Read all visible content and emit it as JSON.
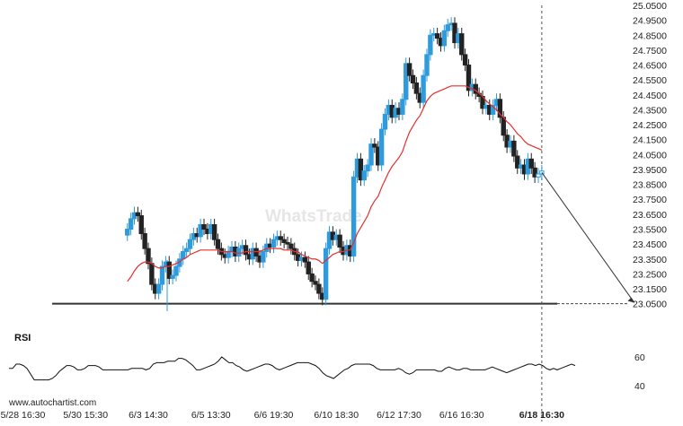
{
  "chart_data": {
    "type": "candlestick",
    "watermark": "WhatsTrade",
    "source": "www.autochartist.com",
    "ylim": [
      23.0,
      25.05
    ],
    "y_ticks": [
      "25.0500",
      "24.9500",
      "24.8500",
      "24.7500",
      "24.6500",
      "24.5500",
      "24.4500",
      "24.3500",
      "24.2500",
      "24.1500",
      "24.0500",
      "23.9500",
      "23.8500",
      "23.7500",
      "23.6500",
      "23.5500",
      "23.4500",
      "23.3500",
      "23.2500",
      "23.1500",
      "23.0500"
    ],
    "x_ticks": [
      {
        "label": "5/28 16:30",
        "bar": 4
      },
      {
        "label": "5/30 15:30",
        "bar": 22
      },
      {
        "label": "6/3 14:30",
        "bar": 40
      },
      {
        "label": "6/5 13:30",
        "bar": 58
      },
      {
        "label": "6/6 19:30",
        "bar": 76
      },
      {
        "label": "6/10 18:30",
        "bar": 94
      },
      {
        "label": "6/12 17:30",
        "bar": 112
      },
      {
        "label": "6/16 16:30",
        "bar": 130
      },
      {
        "label": "6/18 16:30",
        "bar": 153,
        "bold": true
      }
    ],
    "support_level": 23.05,
    "forecast": {
      "from_bar": 153,
      "from_price": 23.93,
      "to_bar": 180,
      "to_price": 23.05
    },
    "closes": [
      23.55,
      23.62,
      23.66,
      23.64,
      23.52,
      23.42,
      23.32,
      23.18,
      23.12,
      23.18,
      23.3,
      23.33,
      23.22,
      23.24,
      23.3,
      23.35,
      23.4,
      23.42,
      23.48,
      23.52,
      23.5,
      23.58,
      23.55,
      23.52,
      23.58,
      23.48,
      23.42,
      23.38,
      23.36,
      23.4,
      23.43,
      23.37,
      23.42,
      23.44,
      23.38,
      23.35,
      23.42,
      23.37,
      23.33,
      23.4,
      23.45,
      23.43,
      23.48,
      23.5,
      23.48,
      23.46,
      23.45,
      23.42,
      23.38,
      23.34,
      23.36,
      23.33,
      23.25,
      23.2,
      23.18,
      23.12,
      23.08,
      23.42,
      23.53,
      23.48,
      23.51,
      23.43,
      23.38,
      23.44,
      23.37,
      23.9,
      24.02,
      23.88,
      23.94,
      23.98,
      24.12,
      24.1,
      23.98,
      24.22,
      24.32,
      24.38,
      24.3,
      24.36,
      24.32,
      24.42,
      24.66,
      24.58,
      24.53,
      24.46,
      24.4,
      24.58,
      24.72,
      24.85,
      24.86,
      24.83,
      24.78,
      24.88,
      24.92,
      24.93,
      24.8,
      24.86,
      24.72,
      24.65,
      24.48,
      24.52,
      24.46,
      24.44,
      24.36,
      24.38,
      24.32,
      24.38,
      24.42,
      24.3,
      24.18,
      24.1,
      24.14,
      24.04,
      23.96,
      23.98,
      23.92,
      24.02,
      23.96,
      23.9,
      23.92,
      23.94
    ],
    "rsi": {
      "label": "RSI",
      "ticks": [
        "60",
        "40"
      ],
      "ylim": [
        30,
        70
      ],
      "values": [
        52,
        52,
        55,
        55,
        54,
        52,
        48,
        44,
        44,
        44,
        44,
        44,
        45,
        47,
        50,
        52,
        54,
        54,
        53,
        51,
        51,
        52,
        54,
        54,
        54,
        53,
        51,
        51,
        51,
        51,
        51,
        51,
        51,
        51,
        52,
        52,
        52,
        52,
        51,
        52,
        55,
        56,
        56,
        56,
        57,
        57,
        57,
        59,
        59,
        58,
        56,
        54,
        51,
        51,
        52,
        53,
        54,
        55,
        57,
        60,
        58,
        56,
        56,
        54,
        53,
        51,
        50,
        51,
        52,
        53,
        54,
        55,
        55,
        54,
        52,
        51,
        52,
        53,
        54,
        55,
        56,
        56,
        56,
        56,
        55,
        54,
        52,
        49,
        47,
        46,
        45,
        47,
        49,
        51,
        52,
        54,
        55,
        55,
        55,
        55,
        55,
        54,
        52,
        51,
        51,
        51,
        51,
        51,
        52,
        51,
        49,
        48,
        49,
        51,
        51,
        51,
        51,
        51,
        51,
        50,
        50,
        52,
        53,
        52,
        51,
        51,
        52,
        52,
        51,
        51,
        51,
        51,
        51,
        52,
        53,
        52,
        51,
        50,
        49,
        50,
        51,
        52,
        53,
        54,
        55,
        55,
        54,
        55,
        54,
        52,
        51,
        52,
        51,
        52,
        53,
        54,
        55,
        54
      ]
    },
    "ma": [
      23.2,
      23.23,
      23.27,
      23.3,
      23.32,
      23.33,
      23.33,
      23.32,
      23.3,
      23.29,
      23.29,
      23.3,
      23.3,
      23.31,
      23.32,
      23.33,
      23.35,
      23.36,
      23.38,
      23.39,
      23.4,
      23.41,
      23.41,
      23.41,
      23.41,
      23.41,
      23.41,
      23.4,
      23.4,
      23.4,
      23.4,
      23.39,
      23.39,
      23.39,
      23.4,
      23.4,
      23.4,
      23.4,
      23.4,
      23.41,
      23.42,
      23.42,
      23.42,
      23.42,
      23.42,
      23.41,
      23.41,
      23.41,
      23.4,
      23.4,
      23.38,
      23.37,
      23.36,
      23.35,
      23.35,
      23.34,
      23.32,
      23.34,
      23.36,
      23.38,
      23.39,
      23.4,
      23.4,
      23.41,
      23.41,
      23.46,
      23.52,
      23.56,
      23.6,
      23.64,
      23.7,
      23.74,
      23.77,
      23.83,
      23.88,
      23.93,
      23.97,
      24.0,
      24.03,
      24.07,
      24.14,
      24.2,
      24.24,
      24.28,
      24.31,
      24.36,
      24.41,
      24.44,
      24.46,
      24.47,
      24.48,
      24.49,
      24.5,
      24.51,
      24.51,
      24.51,
      24.51,
      24.51,
      24.5,
      24.49,
      24.48,
      24.46,
      24.44,
      24.41,
      24.39,
      24.37,
      24.35,
      24.32,
      24.3,
      24.27,
      24.25,
      24.22,
      24.19,
      24.17,
      24.14,
      24.12,
      24.11,
      24.1,
      24.09,
      24.08
    ],
    "ma_color": "#e5302f",
    "bull_color": "#2f9bdc",
    "bear_color": "#222222"
  }
}
